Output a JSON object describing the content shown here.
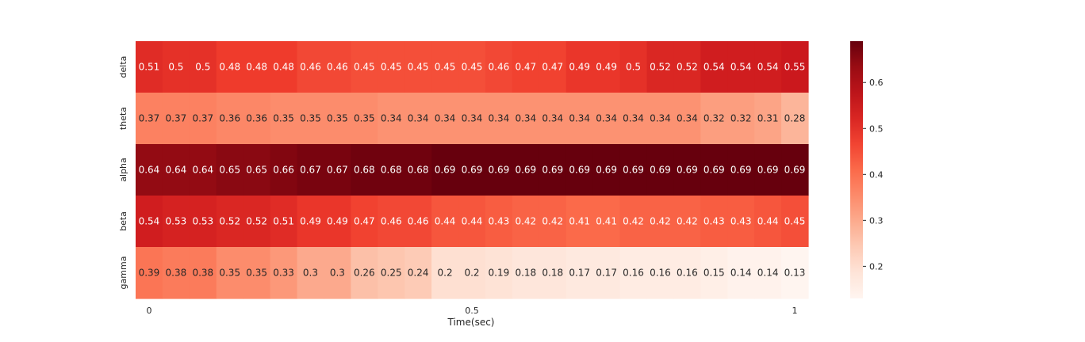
{
  "chart_data": {
    "type": "heatmap",
    "title": "",
    "xlabel": "Time(sec)",
    "ylabel": "",
    "rows": [
      "delta",
      "theta",
      "alpha",
      "beta",
      "gamma"
    ],
    "x_ticks": [
      {
        "label": "0",
        "value": 0
      },
      {
        "label": "0.5",
        "value": 0.5
      },
      {
        "label": "1",
        "value": 1
      }
    ],
    "values": [
      [
        0.51,
        0.5,
        0.5,
        0.48,
        0.48,
        0.48,
        0.46,
        0.46,
        0.45,
        0.45,
        0.45,
        0.45,
        0.45,
        0.46,
        0.47,
        0.47,
        0.49,
        0.49,
        0.5,
        0.52,
        0.52,
        0.54,
        0.54,
        0.54,
        0.55
      ],
      [
        0.37,
        0.37,
        0.37,
        0.36,
        0.36,
        0.35,
        0.35,
        0.35,
        0.35,
        0.34,
        0.34,
        0.34,
        0.34,
        0.34,
        0.34,
        0.34,
        0.34,
        0.34,
        0.34,
        0.34,
        0.34,
        0.32,
        0.32,
        0.31,
        0.28
      ],
      [
        0.64,
        0.64,
        0.64,
        0.65,
        0.65,
        0.66,
        0.67,
        0.67,
        0.68,
        0.68,
        0.68,
        0.69,
        0.69,
        0.69,
        0.69,
        0.69,
        0.69,
        0.69,
        0.69,
        0.69,
        0.69,
        0.69,
        0.69,
        0.69,
        0.69
      ],
      [
        0.54,
        0.53,
        0.53,
        0.52,
        0.52,
        0.51,
        0.49,
        0.49,
        0.47,
        0.46,
        0.46,
        0.44,
        0.44,
        0.43,
        0.42,
        0.42,
        0.41,
        0.41,
        0.42,
        0.42,
        0.42,
        0.43,
        0.43,
        0.44,
        0.45
      ],
      [
        0.39,
        0.38,
        0.38,
        0.35,
        0.35,
        0.33,
        0.3,
        0.3,
        0.26,
        0.25,
        0.24,
        0.2,
        0.2,
        0.19,
        0.18,
        0.18,
        0.17,
        0.17,
        0.16,
        0.16,
        0.16,
        0.15,
        0.14,
        0.14,
        0.13
      ]
    ],
    "colormap": "Reds",
    "color_range": [
      0.13,
      0.69
    ],
    "colorbar_ticks": [
      {
        "label": "0.2",
        "value": 0.2
      },
      {
        "label": "0.3",
        "value": 0.3
      },
      {
        "label": "0.4",
        "value": 0.4
      },
      {
        "label": "0.5",
        "value": 0.5
      },
      {
        "label": "0.6",
        "value": 0.6
      }
    ],
    "annotations": true,
    "grid": false,
    "colors": {
      "low": "#fff5f0",
      "high": "#67000d",
      "light_text": "#ffffff",
      "dark_text": "#262626"
    }
  }
}
